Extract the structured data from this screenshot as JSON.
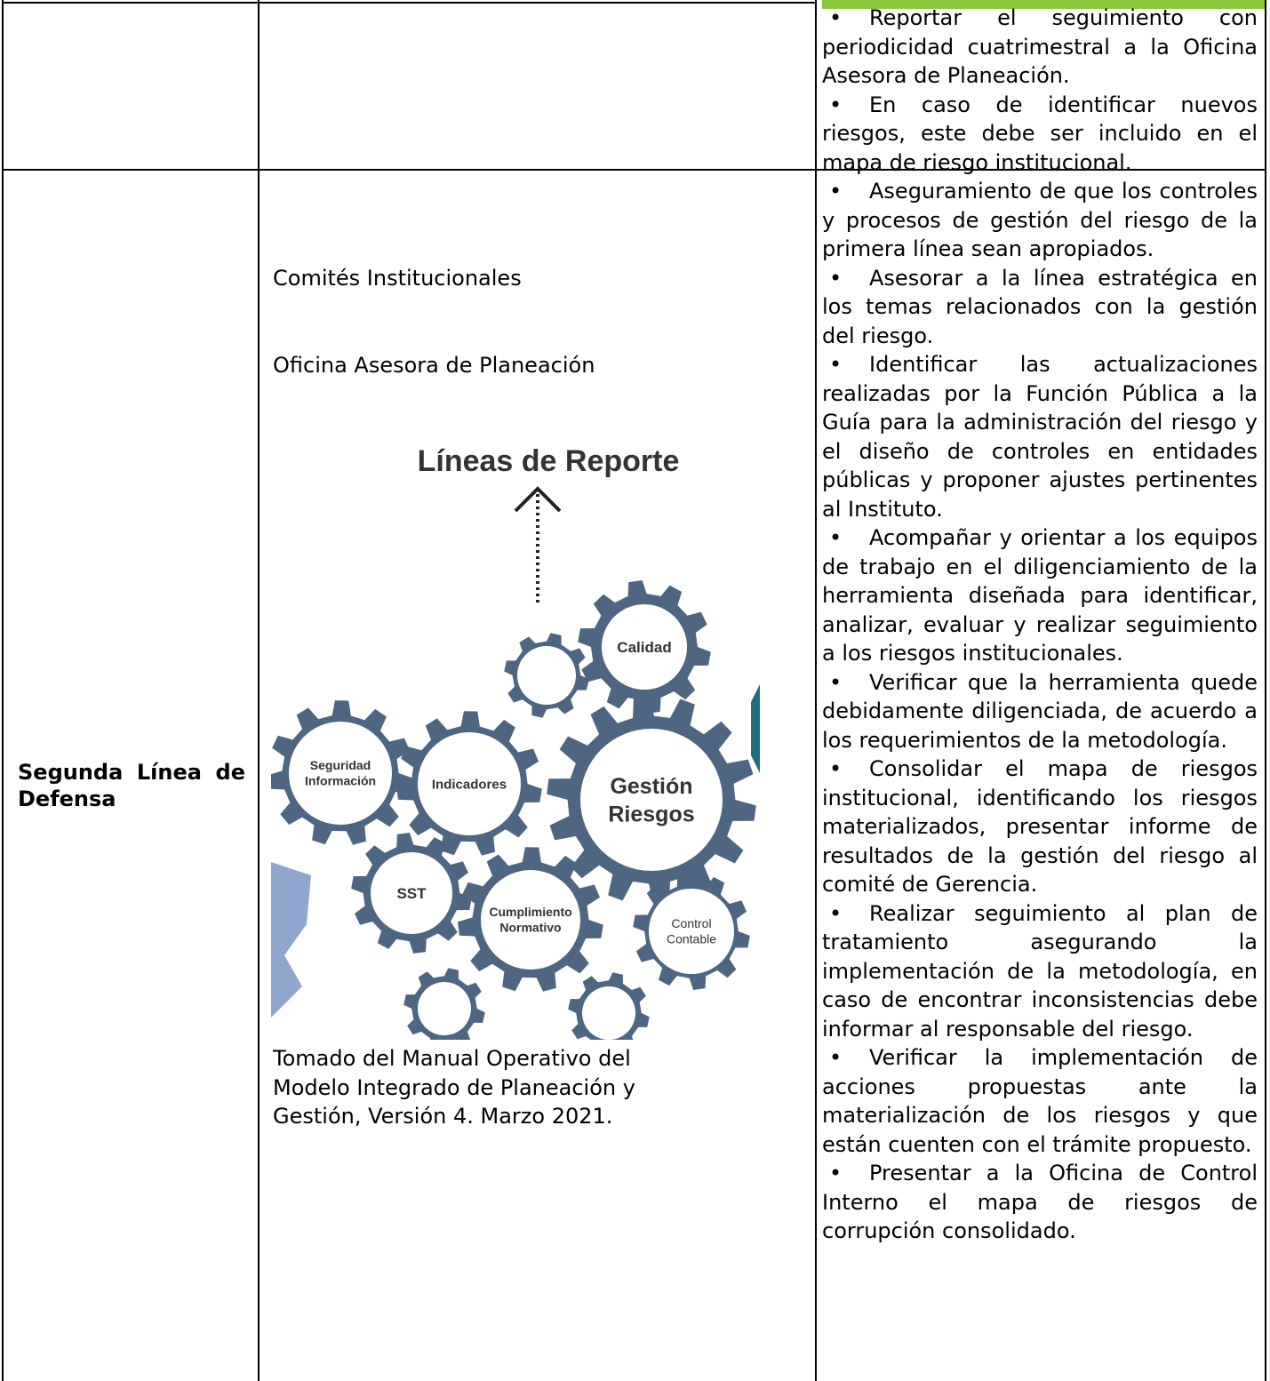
{
  "table": {
    "rows": [
      {
        "responsibilities": [
          "Reportar el seguimiento con periodicidad cuatrimestral a la Oficina Asesora de Planeación.",
          "En caso de identificar nuevos riesgos, este debe ser incluido en el mapa de riesgo institucional."
        ]
      },
      {
        "line": "Segunda Línea de Defensa",
        "responsible": [
          "Comités Institucionales",
          "Oficina Asesora de Planeación"
        ],
        "figure": {
          "title": "Líneas de Reporte",
          "gears": [
            {
              "label": [
                "Calidad"
              ]
            },
            {
              "label": [
                "Seguridad",
                "Información"
              ]
            },
            {
              "label": [
                "Indicadores"
              ]
            },
            {
              "label": [
                "Gestión",
                "Riesgos"
              ]
            },
            {
              "label": [
                "SST"
              ]
            },
            {
              "label": [
                "Cumplimiento",
                "Normativo"
              ]
            },
            {
              "label": [
                "Control",
                "Contable"
              ]
            }
          ]
        },
        "figure_caption": "Tomado del Manual Operativo del Modelo Integrado de Planeación y Gestión, Versión 4. Marzo 2021.",
        "responsibilities": [
          "Aseguramiento de que los controles y procesos de gestión del riesgo de la primera línea sean apropiados.",
          "Asesorar a la línea estratégica en los temas relacionados con la gestión del riesgo.",
          "Identificar las actualizaciones realizadas por la Función Pública a la Guía para la administración del riesgo y el diseño de controles en entidades públicas y proponer ajustes pertinentes al Instituto.",
          "Acompañar y orientar a los equipos de trabajo en el diligenciamiento de la herramienta diseñada para identificar, analizar, evaluar y realizar seguimiento a los riesgos institucionales.",
          "Verificar que la herramienta quede debidamente diligenciada, de acuerdo a los requerimientos de la metodología.",
          "Consolidar el mapa de riesgos institucional, identificando los riesgos materializados, presentar informe de resultados de la gestión del riesgo al comité de Gerencia.",
          "Realizar seguimiento al plan de tratamiento asegurando la implementación de la metodología, en caso de encontrar inconsistencias debe informar al responsable del riesgo.",
          "Verificar la implementación de acciones propuestas ante la materialización de los riesgos y que están cuenten con el trámite propuesto.",
          "Presentar a la Oficina de Control Interno el mapa de riesgos de corrupción consolidado."
        ]
      }
    ]
  }
}
